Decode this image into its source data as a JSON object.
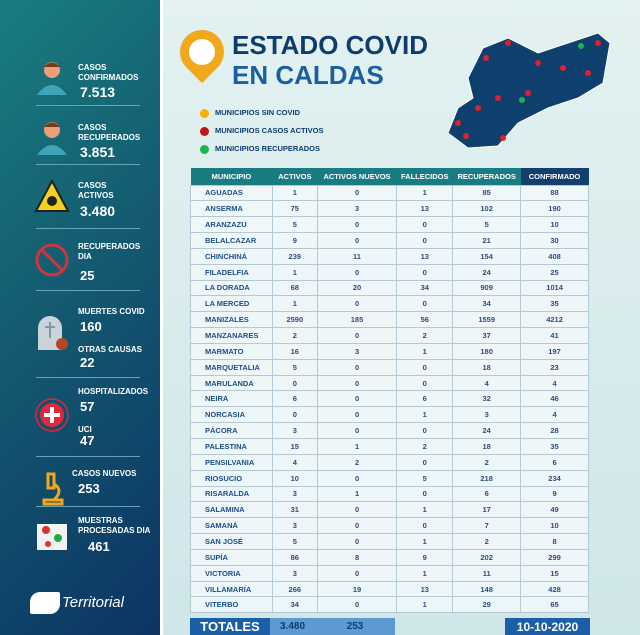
{
  "title": {
    "line1": "ESTADO COVID",
    "line2": "EN CALDAS"
  },
  "legend": [
    {
      "label": "MUNICIPIOS SIN COVID",
      "color": "#f4b400"
    },
    {
      "label": "MUNICIPIOS CASOS ACTIVOS",
      "color": "#c0151b"
    },
    {
      "label": "MUNICIPIOS RECUPERADOS",
      "color": "#1fb24a"
    }
  ],
  "sidebar": {
    "confirmados": {
      "label1": "CASOS",
      "label2": "CONFIRMADOS",
      "value": "7.513"
    },
    "recuperados": {
      "label1": "CASOS",
      "label2": "RECUPERADOS",
      "value": "3.851"
    },
    "activos": {
      "label1": "CASOS",
      "label2": "ACTIVOS",
      "value": "3.480"
    },
    "recuperados_dia": {
      "label1": "RECUPERADOS",
      "label2": "DIA",
      "value": "25"
    },
    "muertes": {
      "label": "MUERTES COVID",
      "value": "160"
    },
    "otras": {
      "label": "OTRAS CAUSAS",
      "value": "22"
    },
    "hosp": {
      "label": "HOSPITALIZADOS",
      "value": "57"
    },
    "uci": {
      "label": "UCI",
      "value": "47"
    },
    "nuevos": {
      "label": "CASOS NUEVOS",
      "value": "253"
    },
    "muestras": {
      "label1": "MUESTRAS",
      "label2": "PROCESADAS DIA",
      "value": "461"
    },
    "logo": "Territorial"
  },
  "table": {
    "headers": [
      "MUNICIPIO",
      "ACTIVOS",
      "ACTIVOS NUEVOS",
      "FALLECIDOS",
      "RECUPERADOS",
      "CONFIRMADO"
    ],
    "rows": [
      [
        "AGUADAS",
        "1",
        "0",
        "1",
        "85",
        "88"
      ],
      [
        "ANSERMA",
        "75",
        "3",
        "13",
        "102",
        "190"
      ],
      [
        "ARANZAZU",
        "5",
        "0",
        "0",
        "5",
        "10"
      ],
      [
        "BELALCAZAR",
        "9",
        "0",
        "0",
        "21",
        "30"
      ],
      [
        "CHINCHINÁ",
        "239",
        "11",
        "13",
        "154",
        "408"
      ],
      [
        "FILADELFIA",
        "1",
        "0",
        "0",
        "24",
        "25"
      ],
      [
        "LA DORADA",
        "68",
        "20",
        "34",
        "909",
        "1014"
      ],
      [
        "LA MERCED",
        "1",
        "0",
        "0",
        "34",
        "35"
      ],
      [
        "MANIZALES",
        "2590",
        "185",
        "56",
        "1559",
        "4212"
      ],
      [
        "MANZANARES",
        "2",
        "0",
        "2",
        "37",
        "41"
      ],
      [
        "MARMATO",
        "16",
        "3",
        "1",
        "180",
        "197"
      ],
      [
        "MARQUETALIA",
        "5",
        "0",
        "0",
        "18",
        "23"
      ],
      [
        "MARULANDA",
        "0",
        "0",
        "0",
        "4",
        "4"
      ],
      [
        "NEIRA",
        "6",
        "0",
        "6",
        "32",
        "46"
      ],
      [
        "NORCASIA",
        "0",
        "0",
        "1",
        "3",
        "4"
      ],
      [
        "PÁCORA",
        "3",
        "0",
        "0",
        "24",
        "28"
      ],
      [
        "PALESTINA",
        "15",
        "1",
        "2",
        "18",
        "35"
      ],
      [
        "PENSILVANIA",
        "4",
        "2",
        "0",
        "2",
        "6"
      ],
      [
        "RIOSUCIO",
        "10",
        "0",
        "5",
        "218",
        "234"
      ],
      [
        "RISARALDA",
        "3",
        "1",
        "0",
        "6",
        "9"
      ],
      [
        "SALAMINA",
        "31",
        "0",
        "1",
        "17",
        "49"
      ],
      [
        "SAMANÁ",
        "3",
        "0",
        "0",
        "7",
        "10"
      ],
      [
        "SAN JOSÉ",
        "5",
        "0",
        "1",
        "2",
        "8"
      ],
      [
        "SUPÍA",
        "86",
        "8",
        "9",
        "202",
        "299"
      ],
      [
        "VICTORIA",
        "3",
        "0",
        "1",
        "11",
        "15"
      ],
      [
        "VILLAMARÍA",
        "266",
        "19",
        "13",
        "148",
        "428"
      ],
      [
        "VITERBO",
        "34",
        "0",
        "1",
        "29",
        "65"
      ]
    ]
  },
  "totals": {
    "label": "TOTALES",
    "activos": "3.480",
    "nuevos": "253",
    "date": "10-10-2020"
  }
}
